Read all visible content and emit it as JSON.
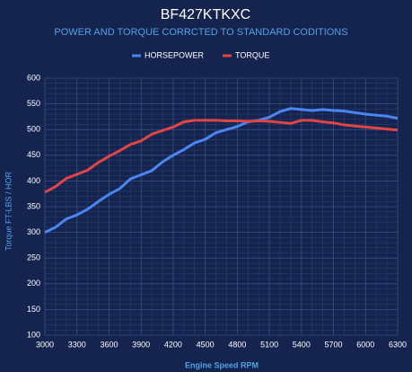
{
  "chart_data": {
    "type": "line",
    "title": "BF427KTKXC",
    "subtitle": "POWER AND TORQUE CORRCTED TO STANDARD CODITIONS",
    "x_label": "Engine Speed RPM",
    "y_label": "Torque FT-LBS / HOR",
    "x": [
      3000,
      3100,
      3200,
      3300,
      3400,
      3500,
      3600,
      3700,
      3800,
      3900,
      4000,
      4100,
      4200,
      4300,
      4400,
      4500,
      4600,
      4700,
      4800,
      4900,
      5000,
      5100,
      5200,
      5300,
      5400,
      5500,
      5600,
      5700,
      5800,
      5900,
      6000,
      6100,
      6200,
      6300
    ],
    "series": [
      {
        "name": "HORSEPOWER",
        "color": "#4a86f0",
        "values": [
          300,
          310,
          326,
          334,
          345,
          360,
          374,
          385,
          404,
          412,
          420,
          437,
          450,
          461,
          474,
          481,
          494,
          500,
          506,
          515,
          518,
          524,
          535,
          541,
          539,
          537,
          539,
          537,
          536,
          533,
          530,
          528,
          526,
          522
        ]
      },
      {
        "name": "TORQUE",
        "color": "#e04545",
        "values": [
          378,
          389,
          405,
          413,
          421,
          436,
          448,
          459,
          471,
          478,
          491,
          498,
          505,
          515,
          518,
          518,
          518,
          517,
          517,
          516,
          517,
          516,
          514,
          512,
          518,
          518,
          515,
          513,
          509,
          507,
          505,
          503,
          501,
          499
        ]
      }
    ],
    "xlim": [
      3000,
      6300
    ],
    "xticks": [
      3000,
      3300,
      3600,
      3900,
      4200,
      4500,
      4800,
      5100,
      5400,
      5700,
      6000,
      6300
    ],
    "ylim": [
      100,
      600
    ],
    "yticks": [
      100,
      150,
      200,
      250,
      300,
      350,
      400,
      450,
      500,
      550,
      600
    ],
    "grid": true,
    "legend": "top"
  }
}
